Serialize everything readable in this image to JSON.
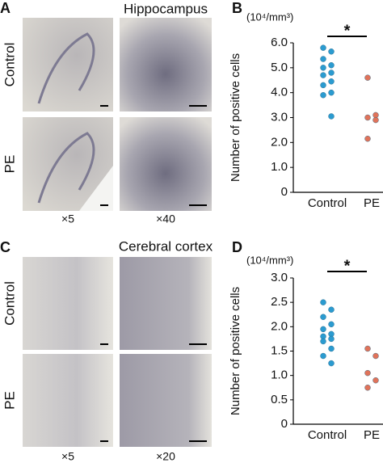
{
  "panels": [
    {
      "letter": "A",
      "title": "Hippocampus",
      "rows": [
        "Control",
        "PE"
      ],
      "magnifications": [
        "×5",
        "×40"
      ]
    },
    {
      "letter": "C",
      "title": "Cerebral cortex",
      "rows": [
        "Control",
        "PE"
      ],
      "magnifications": [
        "×5",
        "×20"
      ]
    }
  ],
  "chart_data": [
    {
      "type": "strip",
      "letter": "B",
      "unit": "(10⁴/mm³)",
      "y_label": "Number of positive cells",
      "significance": "*",
      "ylim": [
        0,
        6
      ],
      "yticks": [
        0,
        {
          "value": 1,
          "label": "1.0"
        },
        {
          "value": 2,
          "label": "2.0"
        },
        {
          "value": 3,
          "label": "3.0"
        },
        {
          "value": 4,
          "label": "4.0"
        },
        {
          "value": 5,
          "label": "5.0"
        },
        {
          "value": 6,
          "label": "6.0"
        }
      ],
      "series": [
        {
          "name": "Control",
          "color": "#2b9bd0",
          "values": [
            5.8,
            5.65,
            5.35,
            5.1,
            5.0,
            4.8,
            4.7,
            4.45,
            4.3,
            4.0,
            3.9,
            3.05
          ]
        },
        {
          "name": "PE",
          "color": "#e0735a",
          "values": [
            4.6,
            3.1,
            3.0,
            2.9,
            2.15
          ]
        }
      ]
    },
    {
      "type": "strip",
      "letter": "D",
      "unit": "(10⁴/mm³)",
      "y_label": "Number of positive cells",
      "significance": "*",
      "ylim": [
        0,
        3
      ],
      "yticks": [
        0,
        0.5,
        {
          "value": 1,
          "label": "1.0"
        },
        1.5,
        {
          "value": 2,
          "label": "2.0"
        },
        2.5,
        {
          "value": 3,
          "label": "3.0"
        }
      ],
      "series": [
        {
          "name": "Control",
          "color": "#2b9bd0",
          "values": [
            2.5,
            2.35,
            2.2,
            2.05,
            1.95,
            1.85,
            1.8,
            1.75,
            1.7,
            1.55,
            1.4,
            1.25
          ]
        },
        {
          "name": "PE",
          "color": "#e0735a",
          "values": [
            1.55,
            1.4,
            1.05,
            0.9,
            0.75
          ]
        }
      ]
    }
  ]
}
